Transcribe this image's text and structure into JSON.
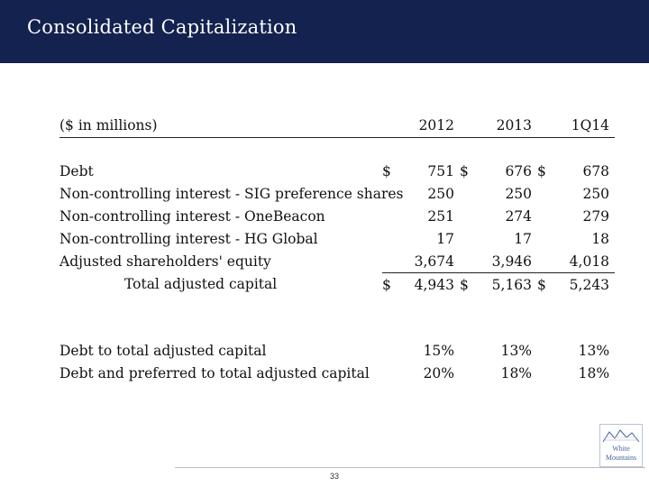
{
  "header": {
    "title": "Consolidated Capitalization"
  },
  "table": {
    "units_label": "($ in millions)",
    "columns": [
      "2012",
      "2013",
      "1Q14"
    ],
    "currency_symbol": "$",
    "rows": [
      {
        "label": "Debt",
        "values": [
          "751",
          "676",
          "678"
        ],
        "currency": true
      },
      {
        "label": "Non-controlling interest - SIG preference shares",
        "values": [
          "250",
          "250",
          "250"
        ],
        "currency": false
      },
      {
        "label": "Non-controlling interest - OneBeacon",
        "values": [
          "251",
          "274",
          "279"
        ],
        "currency": false
      },
      {
        "label": "Non-controlling interest - HG Global",
        "values": [
          "17",
          "17",
          "18"
        ],
        "currency": false
      },
      {
        "label": "Adjusted shareholders' equity",
        "values": [
          "3,674",
          "3,946",
          "4,018"
        ],
        "currency": false
      }
    ],
    "total": {
      "label": "Total adjusted capital",
      "values": [
        "4,943",
        "5,163",
        "5,243"
      ],
      "currency": true
    },
    "ratios": [
      {
        "label": "Debt to total adjusted capital",
        "values": [
          "15%",
          "13%",
          "13%"
        ]
      },
      {
        "label": "Debt and preferred to total adjusted capital",
        "values": [
          "20%",
          "18%",
          "18%"
        ]
      }
    ]
  },
  "footer": {
    "page_number": "33"
  },
  "logo": {
    "line1": "White",
    "line2": "Mountains",
    "color": "#47629a"
  }
}
